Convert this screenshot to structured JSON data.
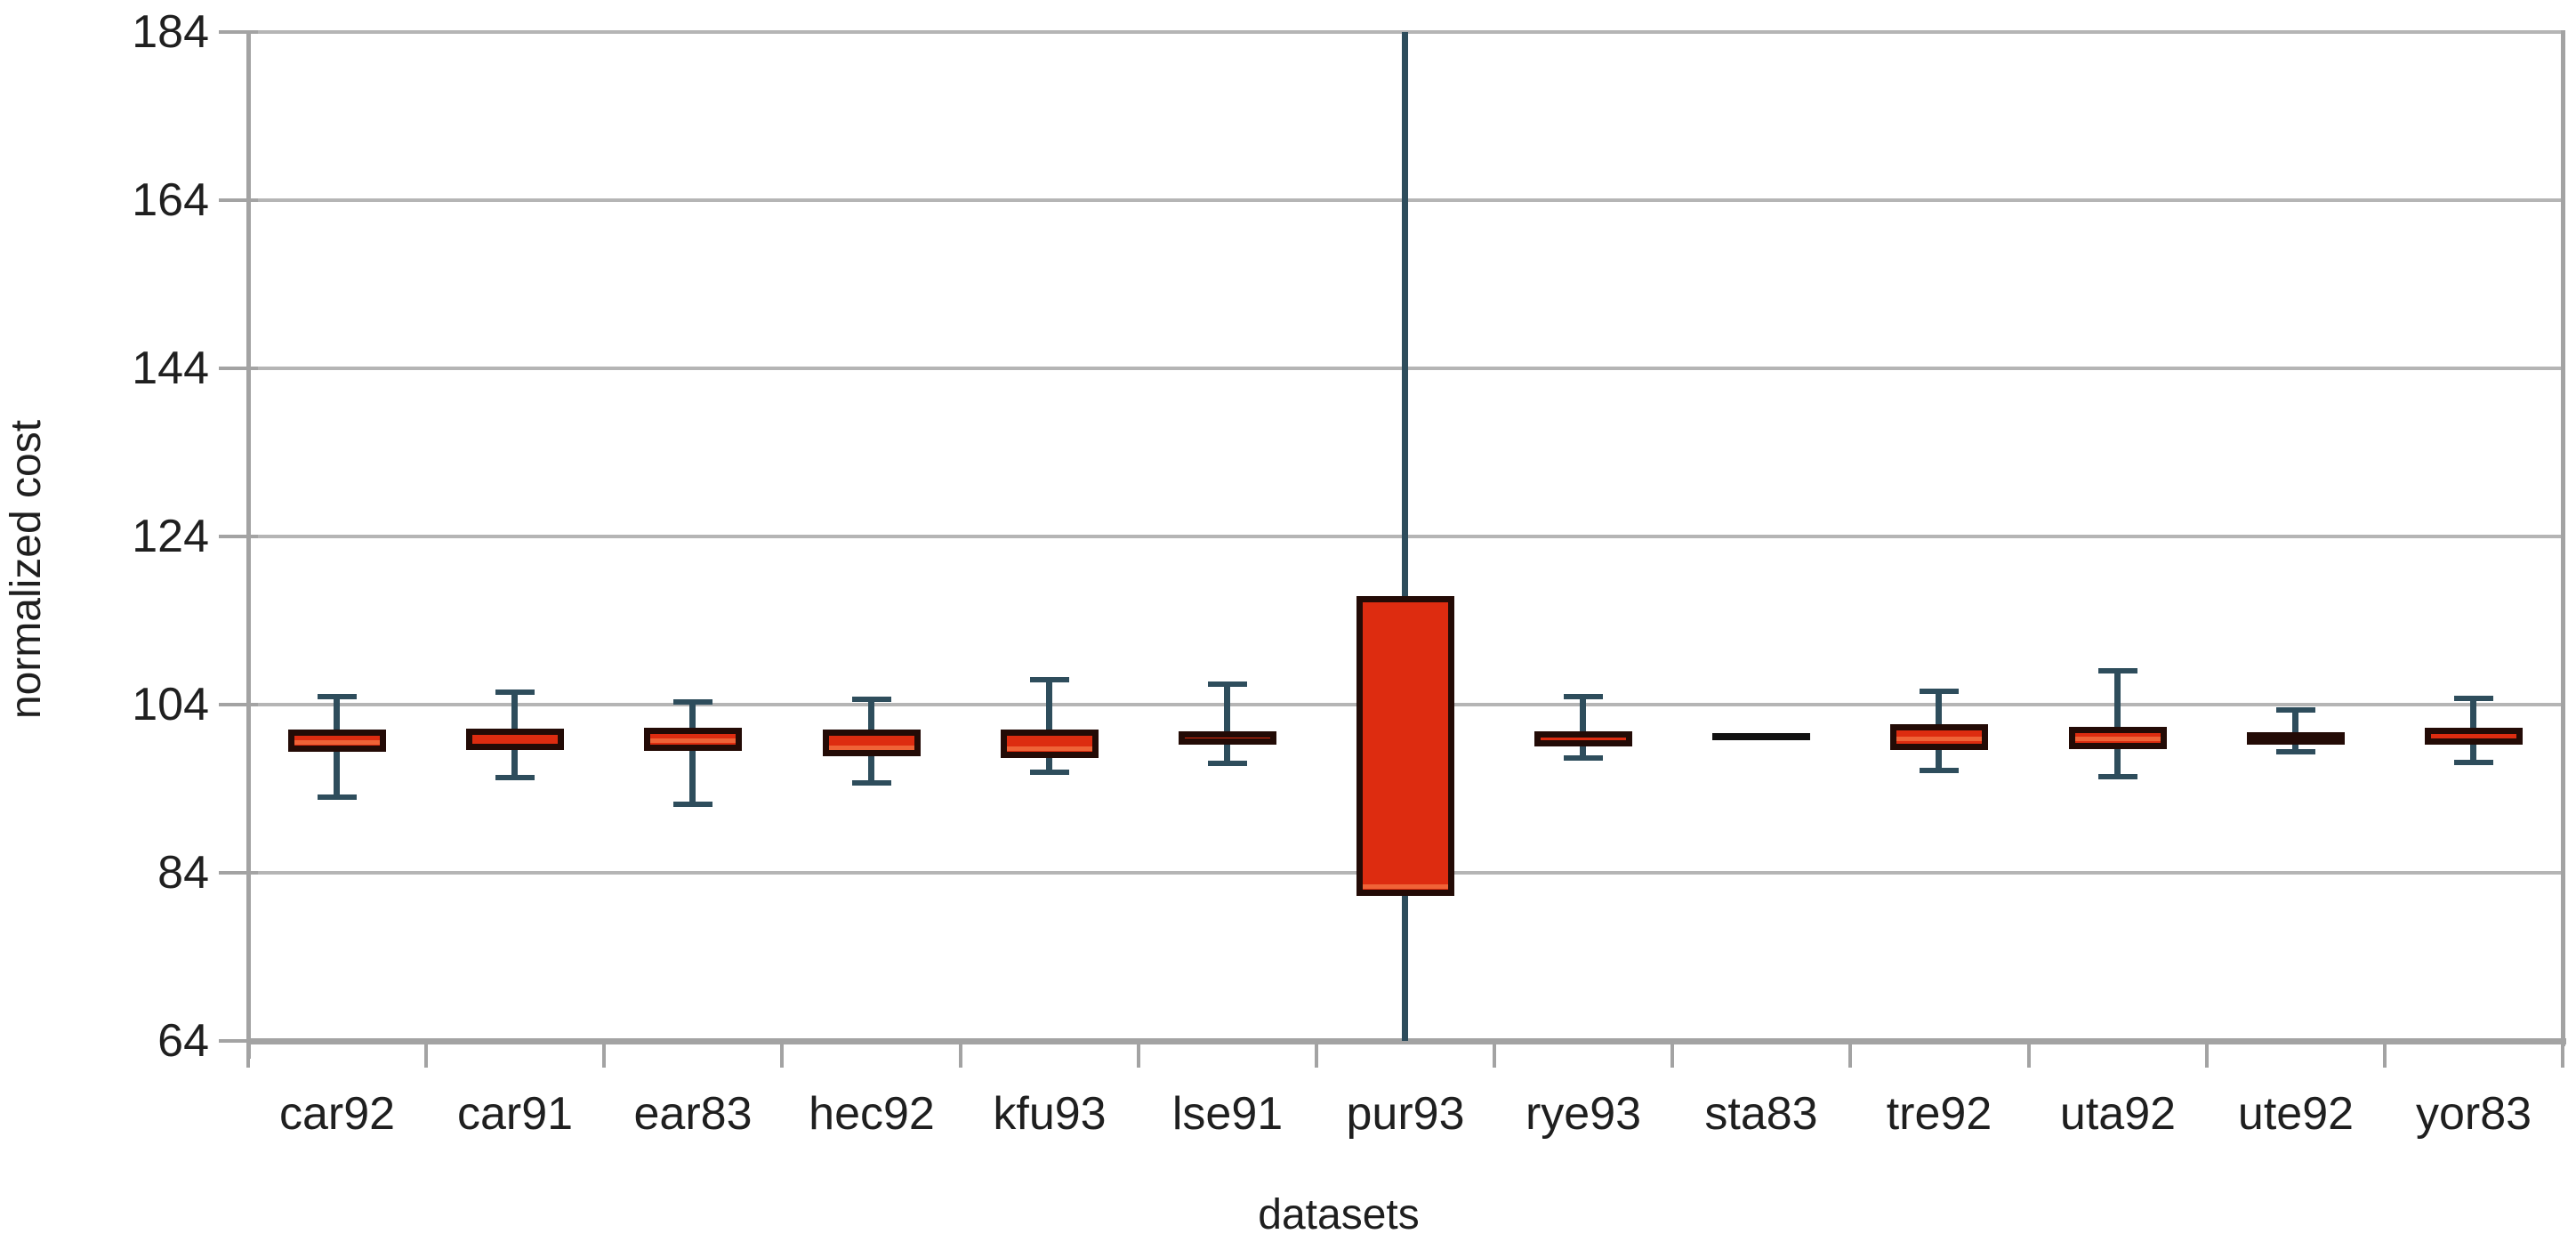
{
  "chart_data": {
    "type": "boxplot",
    "title": "",
    "xlabel": "datasets",
    "ylabel": "normalized cost",
    "grid": true,
    "legend": null,
    "y_axis": {
      "min": 64,
      "max": 184,
      "tick_interval": 20,
      "ticks": [
        184,
        164,
        144,
        124,
        104,
        84,
        64
      ]
    },
    "categories": [
      "car92",
      "car91",
      "ear83",
      "hec92",
      "kfu93",
      "lse91",
      "pur93",
      "rye93",
      "sta83",
      "tre92",
      "uta92",
      "ute92",
      "yor83"
    ],
    "boxes": [
      {
        "name": "car92",
        "low": 93.0,
        "q1": 98.4,
        "median": 99.6,
        "q3": 101.0,
        "high": 105.0
      },
      {
        "name": "car91",
        "low": 95.3,
        "q1": 98.6,
        "median": 100.0,
        "q3": 101.1,
        "high": 105.5
      },
      {
        "name": "ear83",
        "low": 92.2,
        "q1": 98.6,
        "median": 99.8,
        "q3": 101.3,
        "high": 104.3
      },
      {
        "name": "hec92",
        "low": 94.7,
        "q1": 97.8,
        "median": 98.6,
        "q3": 101.0,
        "high": 104.6
      },
      {
        "name": "kfu93",
        "low": 96.0,
        "q1": 97.6,
        "median": 99.0,
        "q3": 101.0,
        "high": 107.0
      },
      {
        "name": "lse91",
        "low": 97.0,
        "q1": 99.2,
        "median": 100.0,
        "q3": 100.8,
        "high": 106.4
      },
      {
        "name": "pur93",
        "low": 64.0,
        "q1": 81.2,
        "median": 82.5,
        "q3": 116.9,
        "high": 184.0,
        "whiskers_clipped_at_axis_range": true
      },
      {
        "name": "rye93",
        "low": 97.6,
        "q1": 99.0,
        "median": 99.8,
        "q3": 100.8,
        "high": 105.0
      },
      {
        "name": "sta83",
        "low": 100.2,
        "q1": 100.2,
        "median": 100.2,
        "q3": 100.2,
        "high": 100.2
      },
      {
        "name": "tre92",
        "low": 96.2,
        "q1": 98.6,
        "median": 100.2,
        "q3": 101.7,
        "high": 105.6
      },
      {
        "name": "uta92",
        "low": 95.4,
        "q1": 98.8,
        "median": 99.4,
        "q3": 101.4,
        "high": 108.0
      },
      {
        "name": "ute92",
        "low": 98.4,
        "q1": 99.5,
        "median": 100.0,
        "q3": 100.7,
        "high": 103.4
      },
      {
        "name": "yor83",
        "low": 97.1,
        "q1": 99.2,
        "median": 100.3,
        "q3": 101.2,
        "high": 104.7
      }
    ],
    "colors": {
      "box_fill": "#dd2c10",
      "box_border": "#230b06",
      "median_line": "#ef6337",
      "whisker": "#2e4d5c",
      "flat_line": "#111111",
      "gridline": "#b5b5b5",
      "axis": "#a3a3a3",
      "text": "#1f1f1f",
      "background": "#ffffff"
    }
  }
}
